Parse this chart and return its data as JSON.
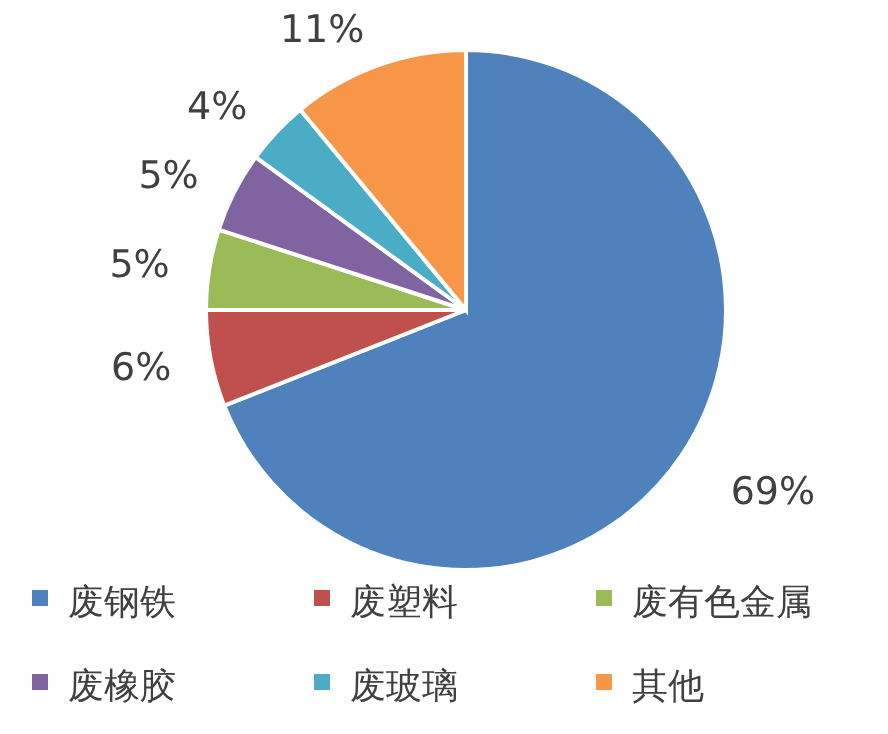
{
  "chart_data": {
    "type": "pie",
    "categories": [
      "废钢铁",
      "废塑料",
      "废有色金属",
      "废橡胶",
      "废玻璃",
      "其他"
    ],
    "values": [
      69,
      6,
      5,
      5,
      4,
      11
    ],
    "value_labels": [
      "69%",
      "6%",
      "5%",
      "5%",
      "4%",
      "11%"
    ],
    "colors": [
      "#4f81bd",
      "#c0504d",
      "#9bbb59",
      "#8064a2",
      "#4bacc6",
      "#f79646"
    ],
    "legend": "bottom"
  }
}
